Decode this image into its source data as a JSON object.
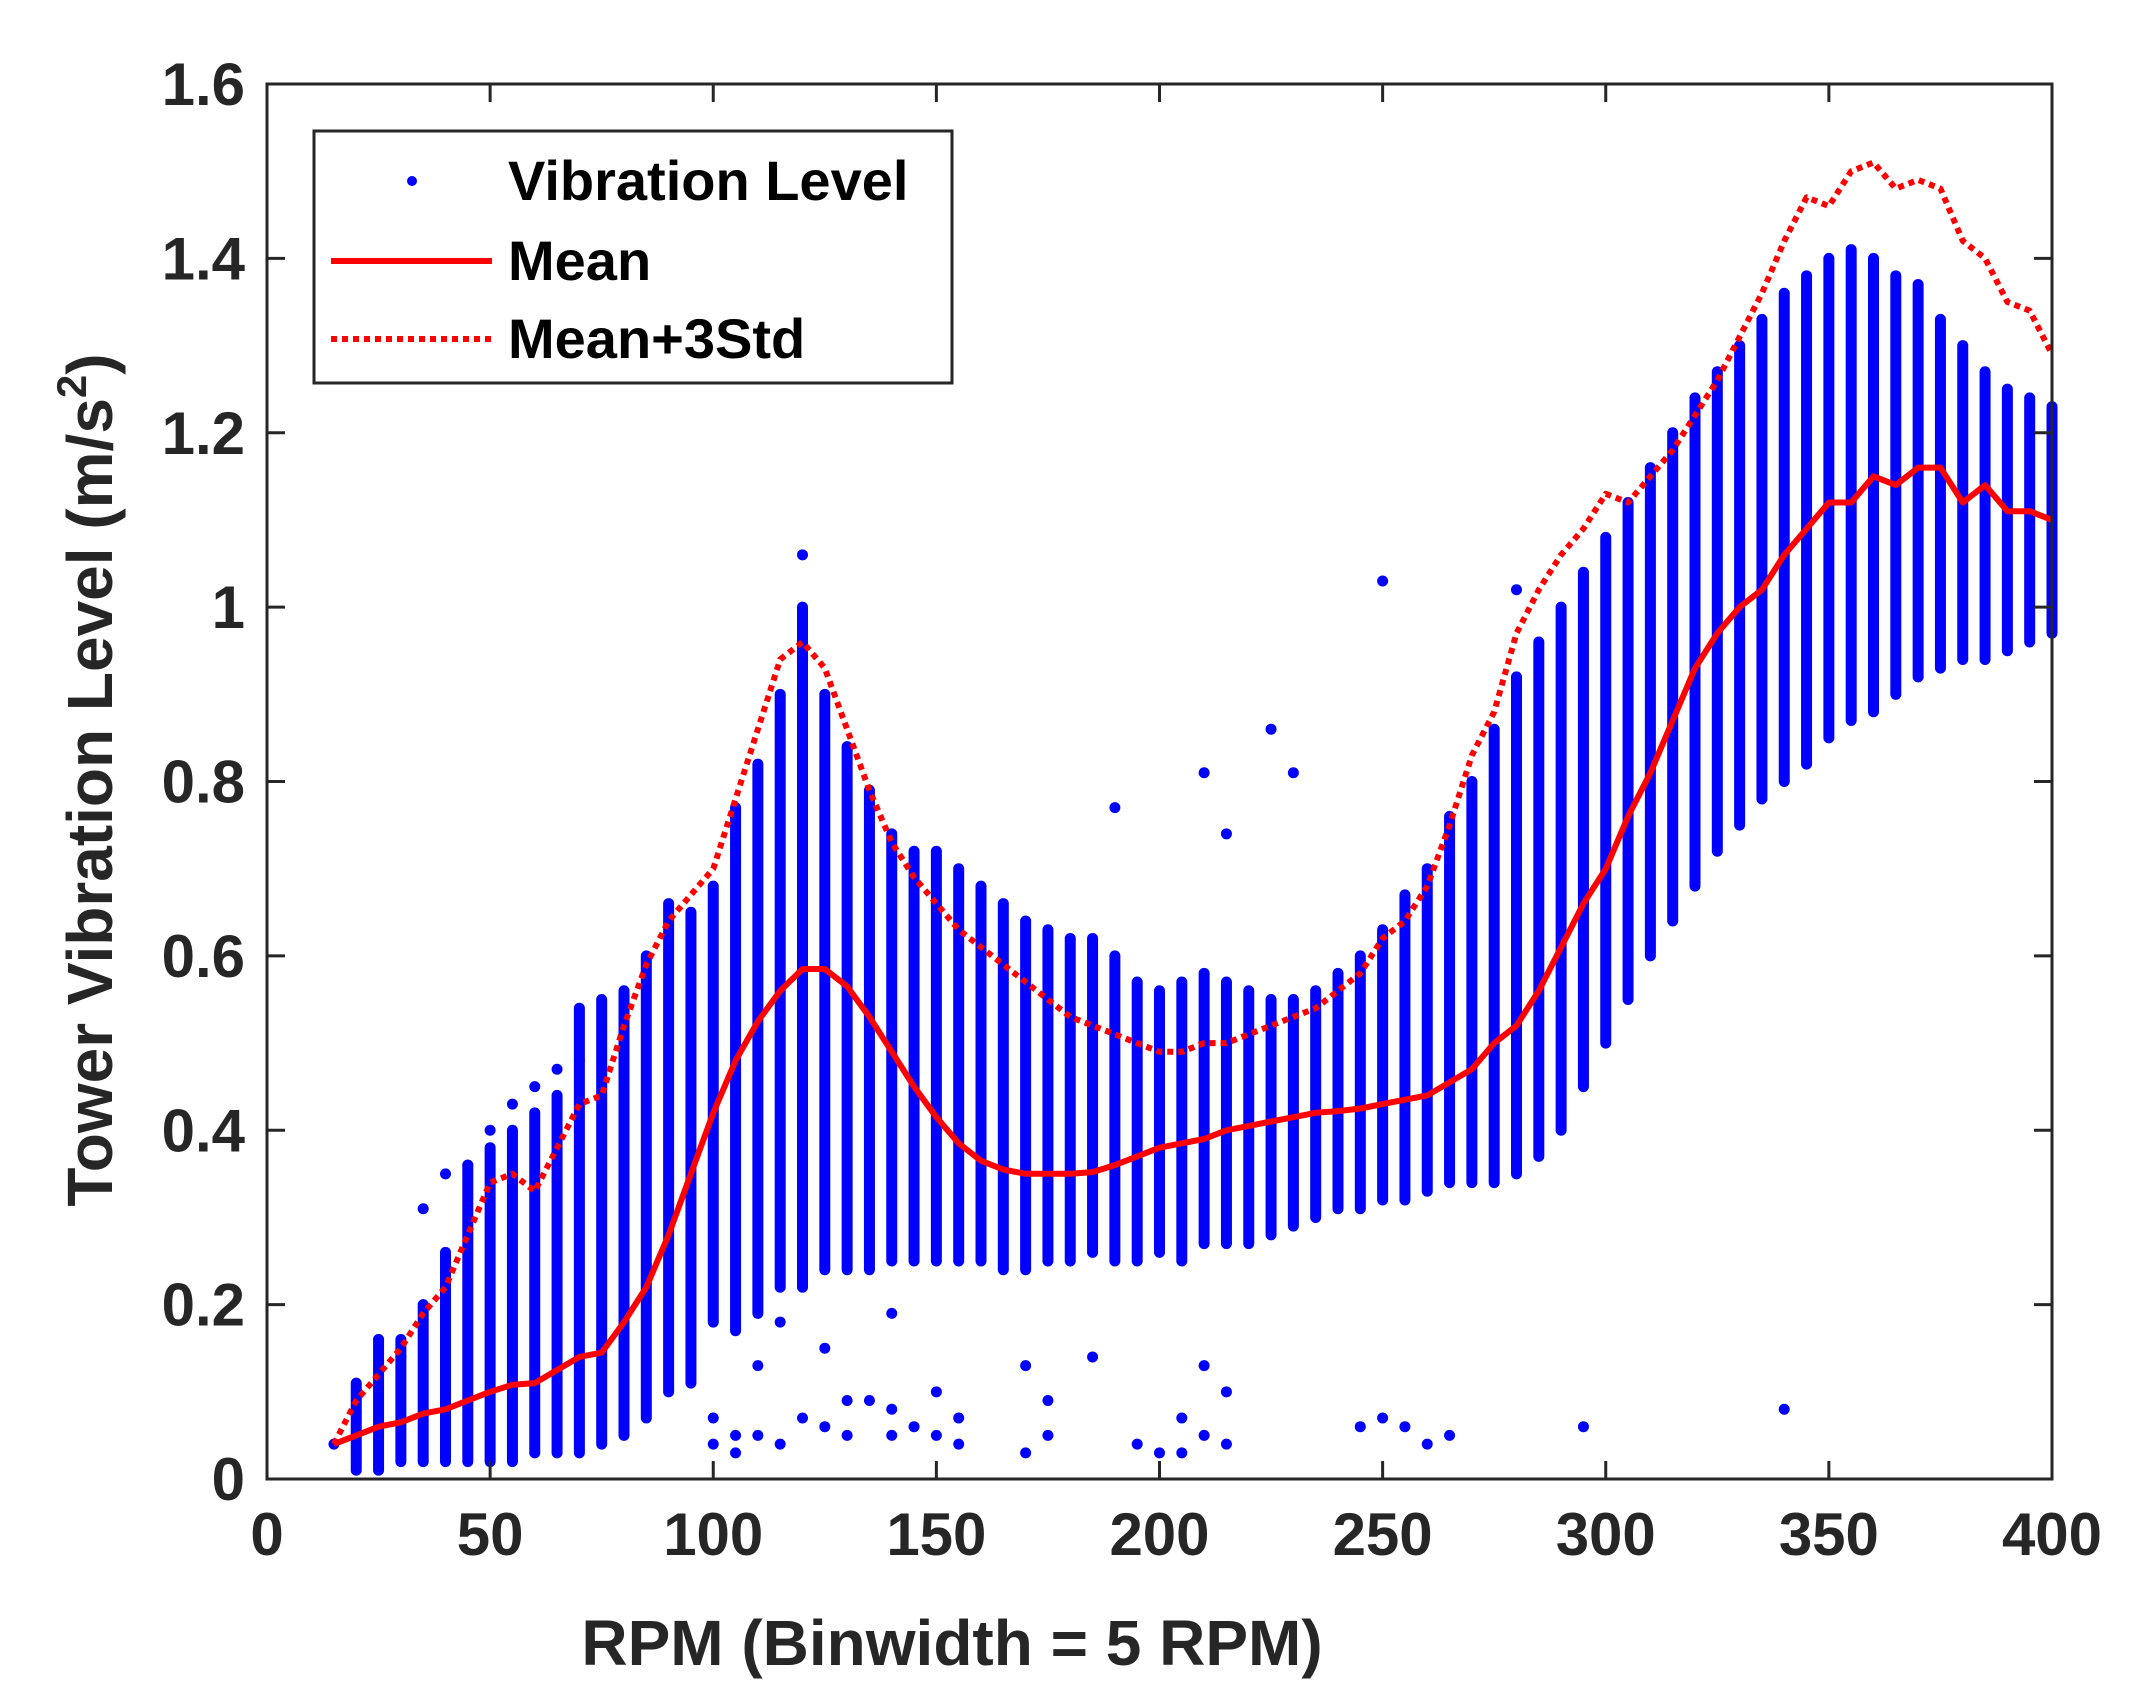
{
  "chart_data": {
    "type": "scatter",
    "title": "",
    "xlabel": "RPM (Binwidth = 5 RPM)",
    "ylabel": "Tower Vibration Level (m/s",
    "ylabel_sup": "2",
    "ylabel_close": ")",
    "xlim": [
      0,
      400
    ],
    "ylim": [
      0,
      1.6
    ],
    "xticks": [
      0,
      50,
      100,
      150,
      200,
      250,
      300,
      350,
      400
    ],
    "xtick_labels": [
      "0",
      "50",
      "100",
      "150",
      "200",
      "250",
      "300",
      "350",
      "400"
    ],
    "yticks": [
      0,
      0.2,
      0.4,
      0.6,
      0.8,
      1.0,
      1.2,
      1.4,
      1.6
    ],
    "ytick_labels": [
      "0",
      "0.2",
      "0.4",
      "0.6",
      "0.8",
      "1",
      "1.2",
      "1.4",
      "1.6"
    ],
    "grid": false,
    "legend_position": "top-left",
    "colors": {
      "scatter": "#0000ff",
      "mean": "#ff0000",
      "std": "#ff0000",
      "axes": "#262626"
    },
    "series": [
      {
        "name": "Vibration Level",
        "kind": "scatter-bins",
        "bin_width": 5,
        "bins": [
          [
            15,
            0.04,
            0.04
          ],
          [
            20,
            0.01,
            0.11
          ],
          [
            25,
            0.01,
            0.16
          ],
          [
            30,
            0.02,
            0.16
          ],
          [
            35,
            0.02,
            0.2
          ],
          [
            40,
            0.02,
            0.26
          ],
          [
            45,
            0.02,
            0.36
          ],
          [
            50,
            0.02,
            0.38
          ],
          [
            55,
            0.02,
            0.4
          ],
          [
            60,
            0.03,
            0.42
          ],
          [
            65,
            0.03,
            0.44
          ],
          [
            70,
            0.03,
            0.54
          ],
          [
            75,
            0.04,
            0.55
          ],
          [
            80,
            0.05,
            0.56
          ],
          [
            85,
            0.07,
            0.6
          ],
          [
            90,
            0.1,
            0.66
          ],
          [
            95,
            0.11,
            0.65
          ],
          [
            100,
            0.18,
            0.68
          ],
          [
            105,
            0.17,
            0.77
          ],
          [
            110,
            0.19,
            0.82
          ],
          [
            115,
            0.22,
            0.9
          ],
          [
            120,
            0.22,
            1.0
          ],
          [
            125,
            0.24,
            0.9
          ],
          [
            130,
            0.24,
            0.84
          ],
          [
            135,
            0.24,
            0.79
          ],
          [
            140,
            0.25,
            0.74
          ],
          [
            145,
            0.25,
            0.72
          ],
          [
            150,
            0.25,
            0.72
          ],
          [
            155,
            0.25,
            0.7
          ],
          [
            160,
            0.25,
            0.68
          ],
          [
            165,
            0.24,
            0.66
          ],
          [
            170,
            0.24,
            0.64
          ],
          [
            175,
            0.25,
            0.63
          ],
          [
            180,
            0.25,
            0.62
          ],
          [
            185,
            0.26,
            0.62
          ],
          [
            190,
            0.25,
            0.6
          ],
          [
            195,
            0.25,
            0.57
          ],
          [
            200,
            0.26,
            0.56
          ],
          [
            205,
            0.25,
            0.57
          ],
          [
            210,
            0.27,
            0.58
          ],
          [
            215,
            0.27,
            0.57
          ],
          [
            220,
            0.27,
            0.56
          ],
          [
            225,
            0.28,
            0.55
          ],
          [
            230,
            0.29,
            0.55
          ],
          [
            235,
            0.3,
            0.56
          ],
          [
            240,
            0.31,
            0.58
          ],
          [
            245,
            0.31,
            0.6
          ],
          [
            250,
            0.32,
            0.63
          ],
          [
            255,
            0.32,
            0.67
          ],
          [
            260,
            0.33,
            0.7
          ],
          [
            265,
            0.34,
            0.76
          ],
          [
            270,
            0.34,
            0.8
          ],
          [
            275,
            0.34,
            0.86
          ],
          [
            280,
            0.35,
            0.92
          ],
          [
            285,
            0.37,
            0.96
          ],
          [
            290,
            0.4,
            1.0
          ],
          [
            295,
            0.45,
            1.04
          ],
          [
            300,
            0.5,
            1.08
          ],
          [
            305,
            0.55,
            1.12
          ],
          [
            310,
            0.6,
            1.16
          ],
          [
            315,
            0.64,
            1.2
          ],
          [
            320,
            0.68,
            1.24
          ],
          [
            325,
            0.72,
            1.27
          ],
          [
            330,
            0.75,
            1.3
          ],
          [
            335,
            0.78,
            1.33
          ],
          [
            340,
            0.8,
            1.36
          ],
          [
            345,
            0.82,
            1.38
          ],
          [
            350,
            0.85,
            1.4
          ],
          [
            355,
            0.87,
            1.41
          ],
          [
            360,
            0.88,
            1.4
          ],
          [
            365,
            0.9,
            1.38
          ],
          [
            370,
            0.92,
            1.37
          ],
          [
            375,
            0.93,
            1.33
          ],
          [
            380,
            0.94,
            1.3
          ],
          [
            385,
            0.94,
            1.27
          ],
          [
            390,
            0.95,
            1.25
          ],
          [
            395,
            0.96,
            1.24
          ],
          [
            400,
            0.97,
            1.23
          ]
        ],
        "outliers": [
          [
            35,
            0.31
          ],
          [
            40,
            0.35
          ],
          [
            45,
            0.36
          ],
          [
            50,
            0.4
          ],
          [
            55,
            0.43
          ],
          [
            60,
            0.45
          ],
          [
            65,
            0.47
          ],
          [
            70,
            0.48
          ],
          [
            110,
            0.13
          ],
          [
            115,
            0.18
          ],
          [
            120,
            1.06
          ],
          [
            125,
            0.15
          ],
          [
            140,
            0.19
          ],
          [
            190,
            0.77
          ],
          [
            210,
            0.81
          ],
          [
            215,
            0.74
          ],
          [
            225,
            0.86
          ],
          [
            230,
            0.81
          ],
          [
            250,
            1.03
          ],
          [
            280,
            1.02
          ],
          [
            25,
            0.16
          ],
          [
            30,
            0.14
          ],
          [
            100,
            0.07
          ],
          [
            100,
            0.04
          ],
          [
            105,
            0.05
          ],
          [
            105,
            0.03
          ],
          [
            110,
            0.05
          ],
          [
            115,
            0.04
          ],
          [
            120,
            0.07
          ],
          [
            125,
            0.06
          ],
          [
            130,
            0.09
          ],
          [
            130,
            0.05
          ],
          [
            135,
            0.09
          ],
          [
            140,
            0.08
          ],
          [
            140,
            0.05
          ],
          [
            145,
            0.06
          ],
          [
            150,
            0.1
          ],
          [
            150,
            0.05
          ],
          [
            155,
            0.07
          ],
          [
            155,
            0.04
          ],
          [
            170,
            0.13
          ],
          [
            170,
            0.03
          ],
          [
            175,
            0.09
          ],
          [
            175,
            0.05
          ],
          [
            185,
            0.14
          ],
          [
            195,
            0.04
          ],
          [
            200,
            0.03
          ],
          [
            205,
            0.07
          ],
          [
            205,
            0.03
          ],
          [
            210,
            0.13
          ],
          [
            210,
            0.05
          ],
          [
            215,
            0.1
          ],
          [
            215,
            0.04
          ],
          [
            245,
            0.06
          ],
          [
            250,
            0.07
          ],
          [
            255,
            0.06
          ],
          [
            260,
            0.04
          ],
          [
            265,
            0.05
          ],
          [
            295,
            0.06
          ],
          [
            340,
            0.08
          ]
        ]
      },
      {
        "name": "Mean",
        "kind": "line",
        "x": [
          15,
          20,
          25,
          30,
          35,
          40,
          45,
          50,
          55,
          60,
          65,
          70,
          75,
          80,
          85,
          90,
          95,
          100,
          105,
          110,
          115,
          120,
          125,
          130,
          135,
          140,
          145,
          150,
          155,
          160,
          165,
          170,
          175,
          180,
          185,
          190,
          195,
          200,
          205,
          210,
          215,
          220,
          225,
          230,
          235,
          240,
          245,
          250,
          255,
          260,
          265,
          270,
          275,
          280,
          285,
          290,
          295,
          300,
          305,
          310,
          315,
          320,
          325,
          330,
          335,
          340,
          345,
          350,
          355,
          360,
          365,
          370,
          375,
          380,
          385,
          390,
          395,
          400
        ],
        "y": [
          0.04,
          0.05,
          0.06,
          0.065,
          0.075,
          0.08,
          0.09,
          0.1,
          0.108,
          0.11,
          0.125,
          0.14,
          0.145,
          0.18,
          0.22,
          0.28,
          0.35,
          0.42,
          0.48,
          0.525,
          0.56,
          0.585,
          0.585,
          0.565,
          0.53,
          0.49,
          0.45,
          0.415,
          0.385,
          0.365,
          0.355,
          0.35,
          0.35,
          0.35,
          0.352,
          0.36,
          0.37,
          0.38,
          0.385,
          0.39,
          0.4,
          0.405,
          0.41,
          0.415,
          0.42,
          0.422,
          0.425,
          0.43,
          0.435,
          0.44,
          0.455,
          0.47,
          0.5,
          0.52,
          0.56,
          0.61,
          0.66,
          0.7,
          0.76,
          0.81,
          0.87,
          0.93,
          0.97,
          1.0,
          1.02,
          1.06,
          1.09,
          1.12,
          1.12,
          1.15,
          1.14,
          1.16,
          1.16,
          1.12,
          1.14,
          1.11,
          1.11,
          1.1
        ]
      },
      {
        "name": "Mean+3Std",
        "kind": "line",
        "dashed": true,
        "x": [
          15,
          20,
          25,
          30,
          35,
          40,
          45,
          50,
          55,
          60,
          65,
          70,
          75,
          80,
          85,
          90,
          95,
          100,
          105,
          110,
          115,
          120,
          125,
          130,
          135,
          140,
          145,
          150,
          155,
          160,
          165,
          170,
          175,
          180,
          185,
          190,
          195,
          200,
          205,
          210,
          215,
          220,
          225,
          230,
          235,
          240,
          245,
          250,
          255,
          260,
          265,
          270,
          275,
          280,
          285,
          290,
          295,
          300,
          305,
          310,
          315,
          320,
          325,
          330,
          335,
          340,
          345,
          350,
          355,
          360,
          365,
          370,
          375,
          380,
          385,
          390,
          395,
          400
        ],
        "y": [
          0.04,
          0.09,
          0.12,
          0.15,
          0.19,
          0.22,
          0.28,
          0.34,
          0.35,
          0.33,
          0.38,
          0.43,
          0.44,
          0.52,
          0.59,
          0.64,
          0.67,
          0.7,
          0.78,
          0.86,
          0.94,
          0.96,
          0.93,
          0.86,
          0.79,
          0.73,
          0.69,
          0.66,
          0.63,
          0.61,
          0.59,
          0.57,
          0.55,
          0.53,
          0.52,
          0.51,
          0.5,
          0.49,
          0.49,
          0.5,
          0.5,
          0.51,
          0.52,
          0.53,
          0.54,
          0.56,
          0.58,
          0.62,
          0.64,
          0.68,
          0.75,
          0.83,
          0.88,
          0.97,
          1.02,
          1.06,
          1.09,
          1.13,
          1.12,
          1.15,
          1.18,
          1.22,
          1.26,
          1.31,
          1.36,
          1.42,
          1.47,
          1.46,
          1.5,
          1.51,
          1.48,
          1.49,
          1.48,
          1.42,
          1.4,
          1.35,
          1.34,
          1.29
        ]
      }
    ],
    "legend": [
      {
        "label": "Vibration Level",
        "marker": "dot"
      },
      {
        "label": "Mean",
        "marker": "solid"
      },
      {
        "label": "Mean+3Std",
        "marker": "dotted"
      }
    ]
  }
}
